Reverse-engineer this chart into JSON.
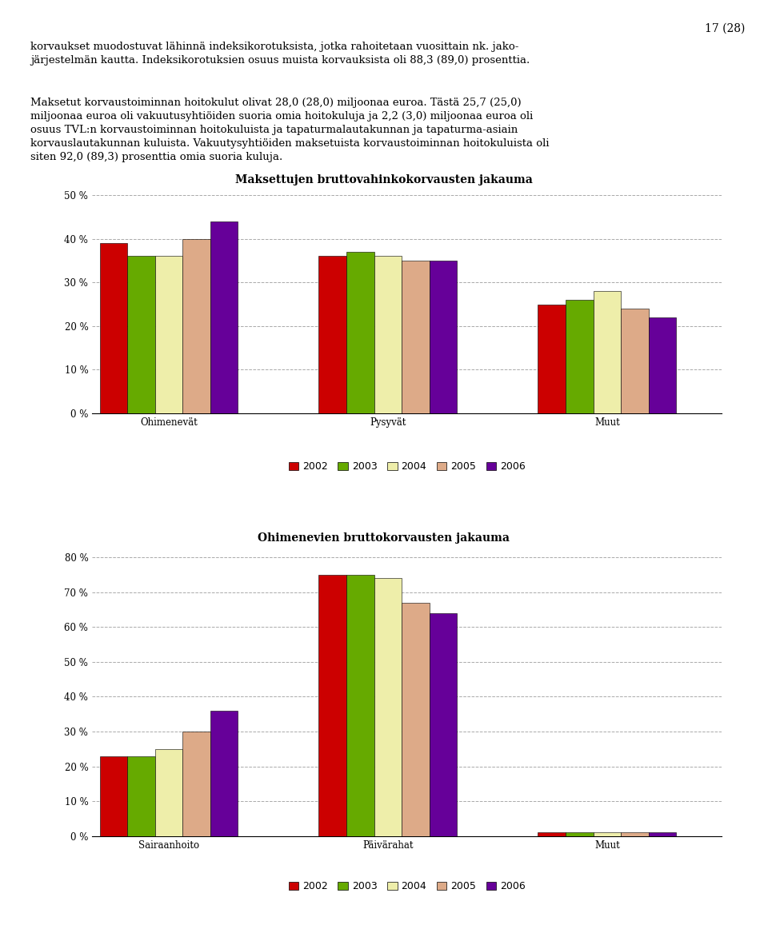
{
  "page_number": "17 (28)",
  "para1_line1": "korvaukset muodostuvat lähinnä indeksikorotuksista, jotka rahoitetaan vuosittain nk. jako-",
  "para1_line2": "järjestelmän kautta. Indeksikorotuksien osuus muista korvauksista oli 88,3 (89,0) prosenttia.",
  "para2_line1": "Maksetut korvaustoiminnan hoitokulut olivat 28,0 (28,0) miljoonaa euroa. Tästä 25,7 (25,0)",
  "para2_line2": "miljoonaa euroa oli vakuutusyhtiöiden suoria omia hoitokuluja ja 2,2 (3,0) miljoonaa euroa oli",
  "para2_line3": "osuus TVL:n korvaustoiminnan hoitokuluista ja tapaturmalautakunnan ja tapaturma-asiain",
  "para2_line4": "korvauslautakunnan kuluista. Vakuutysyhtiöiden maksetuista korvaustoiminnan hoitokuluista oli",
  "para2_line5": "siten 92,0 (89,3) prosenttia omia suoria kuluja.",
  "chart1": {
    "title": "Maksettujen bruttovahinkokorvausten jakauma",
    "categories": [
      "Ohimenevät",
      "Pysyvät",
      "Muut"
    ],
    "ylim": [
      0,
      50
    ],
    "yticks": [
      0,
      10,
      20,
      30,
      40,
      50
    ],
    "ytick_labels": [
      "0 %",
      "10 %",
      "20 %",
      "30 %",
      "40 %",
      "50 %"
    ],
    "data": {
      "Ohimenevät": [
        39,
        36,
        36,
        40,
        44
      ],
      "Pysyvät": [
        36,
        37,
        36,
        35,
        35
      ],
      "Muut": [
        25,
        26,
        28,
        24,
        22
      ]
    }
  },
  "chart2": {
    "title": "Ohimenevien bruttokorvausten jakauma",
    "categories": [
      "Sairaanhoito",
      "Päivärahat",
      "Muut"
    ],
    "ylim": [
      0,
      80
    ],
    "yticks": [
      0,
      10,
      20,
      30,
      40,
      50,
      60,
      70,
      80
    ],
    "ytick_labels": [
      "0 %",
      "10 %",
      "20 %",
      "30 %",
      "40 %",
      "50 %",
      "60 %",
      "70 %",
      "80 %"
    ],
    "data": {
      "Sairaanhoito": [
        23,
        23,
        25,
        30,
        36
      ],
      "Päivärahat": [
        75,
        75,
        74,
        67,
        64
      ],
      "Muut": [
        1,
        1,
        1,
        1,
        1
      ]
    }
  },
  "years": [
    "2002",
    "2003",
    "2004",
    "2005",
    "2006"
  ],
  "bar_colors": [
    "#cc0000",
    "#66aa00",
    "#eeeeaa",
    "#ddaa88",
    "#660099"
  ],
  "bar_edgecolor": "#000000",
  "background_color": "#ffffff",
  "grid_color": "#aaaaaa",
  "font_size_title": 10,
  "font_size_text": 9.5,
  "font_size_axis": 8.5,
  "font_size_legend": 9,
  "font_size_pagenum": 10
}
